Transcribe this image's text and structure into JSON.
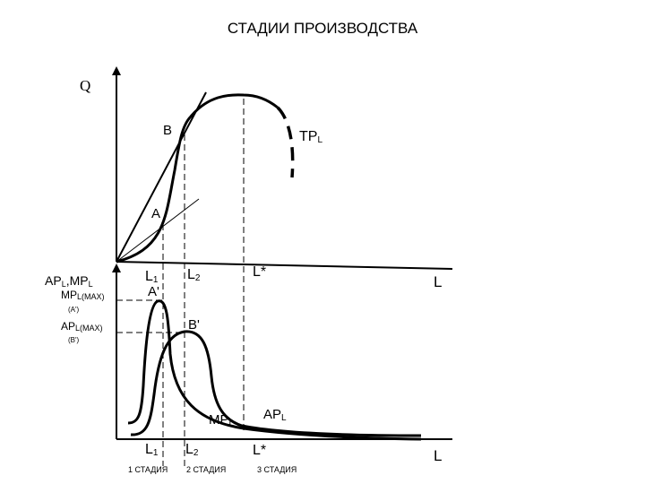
{
  "title": "СТАДИИ ПРОИЗВОДСТВА",
  "top_chart": {
    "y_axis_label": "Q",
    "curve_label": {
      "main": "TP",
      "sub": "L"
    },
    "point_a": "A",
    "point_b": "B",
    "x_axis_label": "L"
  },
  "bottom_chart": {
    "y_axis_label": {
      "p1": "AP",
      "s1": "L",
      "comma": ",",
      "p2": "MP",
      "s2": "L"
    },
    "mp_max_label": {
      "main": "MP",
      "sub": "L(MAX)",
      "note": "(A')"
    },
    "ap_max_label": {
      "main": "AP",
      "sub": "L(MAX)",
      "note": "(B')"
    },
    "point_a_prime": "A'",
    "point_b_prime": "B'",
    "mp_curve_label": {
      "main": "MP",
      "sub": "L"
    },
    "ap_curve_label": {
      "main": "AP",
      "sub": "L"
    },
    "x_axis_label": "L"
  },
  "markers": {
    "l1": {
      "main": "L",
      "sub": "1"
    },
    "l2": {
      "main": "L",
      "sub": "2"
    },
    "lstar": "L*"
  },
  "stages": [
    "1 СТАДИЯ",
    "2 СТАДИЯ",
    "3 СТАДИЯ"
  ]
}
